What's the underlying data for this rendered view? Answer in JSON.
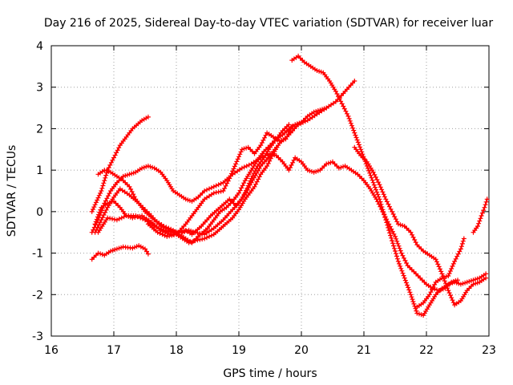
{
  "chart_data": {
    "type": "scatter",
    "title": "Day 216 of 2025, Sidereal Day-to-day VTEC variation (SDTVAR) for receiver luar",
    "xlabel": "GPS time / hours",
    "ylabel": "SDTVAR / TECUs",
    "xlim": [
      16,
      23
    ],
    "ylim": [
      -3,
      4
    ],
    "xticks": [
      "16",
      "17",
      "18",
      "19",
      "20",
      "21",
      "22",
      "23"
    ],
    "yticks": [
      "4",
      "3",
      "2",
      "1",
      "0",
      "-1",
      "-2",
      "-3"
    ],
    "grid": true,
    "marker": "+",
    "color": "#ff0000",
    "series": [
      {
        "name": "s1",
        "x": [
          16.65,
          16.8,
          16.9,
          17.0,
          17.1,
          17.2,
          17.3,
          17.45,
          17.55
        ],
        "y": [
          0.0,
          0.5,
          1.0,
          1.3,
          1.6,
          1.8,
          2.0,
          2.2,
          2.28
        ]
      },
      {
        "name": "s2",
        "x": [
          16.65,
          16.75,
          16.85,
          16.95,
          17.05,
          17.15,
          17.3,
          17.4,
          17.5,
          17.55
        ],
        "y": [
          -1.15,
          -1.0,
          -1.05,
          -0.95,
          -0.9,
          -0.85,
          -0.88,
          -0.82,
          -0.9,
          -1.02
        ]
      },
      {
        "name": "s3",
        "x": [
          16.65,
          16.75,
          16.85,
          16.95,
          17.05,
          17.15,
          17.25,
          17.35,
          17.45,
          17.55,
          17.65,
          17.75,
          17.85,
          17.95,
          18.05,
          18.15,
          18.25,
          18.35,
          18.45,
          18.6,
          18.75,
          18.9,
          19.05,
          19.2,
          19.35,
          19.5,
          19.6,
          19.7,
          19.8,
          19.9,
          20.0,
          20.1,
          20.2,
          20.3,
          20.4,
          20.5,
          20.6,
          20.7,
          20.8,
          20.9,
          21.0,
          21.1,
          21.2,
          21.3,
          21.4,
          21.5,
          21.6,
          21.7,
          21.8,
          21.9,
          22.0,
          22.1,
          22.2,
          22.3,
          22.4,
          22.5
        ],
        "y": [
          -0.5,
          -0.2,
          0.2,
          0.5,
          0.7,
          0.85,
          0.9,
          0.95,
          1.05,
          1.1,
          1.05,
          0.95,
          0.75,
          0.5,
          0.4,
          0.3,
          0.25,
          0.35,
          0.5,
          0.6,
          0.7,
          0.9,
          1.05,
          1.15,
          1.3,
          1.4,
          1.35,
          1.2,
          1.0,
          1.3,
          1.2,
          1.0,
          0.95,
          1.0,
          1.15,
          1.2,
          1.05,
          1.1,
          1.0,
          0.9,
          0.75,
          0.55,
          0.3,
          0.0,
          -0.3,
          -0.6,
          -1.0,
          -1.3,
          -1.45,
          -1.6,
          -1.75,
          -1.85,
          -1.9,
          -1.85,
          -1.7,
          -1.65
        ]
      },
      {
        "name": "s4",
        "x": [
          16.7,
          16.8,
          16.9,
          17.0,
          17.1,
          17.25,
          17.4,
          17.5,
          17.6,
          17.75,
          17.9,
          18.0,
          18.1,
          18.2,
          18.3,
          18.45,
          18.6,
          18.75,
          18.9,
          19.0,
          19.1,
          19.2,
          19.3,
          19.4,
          19.5,
          19.6,
          19.7,
          19.8
        ],
        "y": [
          -0.5,
          -0.2,
          0.1,
          0.35,
          0.55,
          0.4,
          0.2,
          0.05,
          -0.1,
          -0.35,
          -0.45,
          -0.5,
          -0.5,
          -0.45,
          -0.5,
          -0.55,
          -0.4,
          -0.2,
          0.05,
          0.2,
          0.45,
          0.8,
          1.1,
          1.3,
          1.55,
          1.75,
          1.95,
          2.1
        ]
      },
      {
        "name": "s5",
        "x": [
          16.7,
          16.8,
          16.9,
          17.0,
          17.1,
          17.2,
          17.3,
          17.45,
          17.6,
          17.75,
          17.9,
          18.0,
          18.1,
          18.2,
          18.3,
          18.45,
          18.6,
          18.75,
          18.9,
          19.0,
          19.1,
          19.25,
          19.35,
          19.45,
          19.55,
          19.65,
          19.8,
          19.95,
          20.1,
          20.25,
          20.4,
          20.55,
          20.7,
          20.85
        ],
        "y": [
          -0.3,
          0.1,
          0.2,
          0.25,
          0.1,
          -0.1,
          -0.15,
          -0.1,
          -0.25,
          -0.45,
          -0.55,
          -0.55,
          -0.65,
          -0.75,
          -0.7,
          -0.65,
          -0.55,
          -0.35,
          -0.15,
          0.05,
          0.3,
          0.6,
          0.9,
          1.1,
          1.4,
          1.65,
          1.85,
          2.1,
          2.2,
          2.35,
          2.5,
          2.65,
          2.9,
          3.15
        ]
      },
      {
        "name": "s6",
        "x": [
          16.75,
          16.85,
          16.95,
          17.05,
          17.15,
          17.25,
          17.35,
          17.5,
          17.65,
          17.8,
          17.95,
          18.05,
          18.15,
          18.25,
          18.35,
          18.5,
          18.6,
          18.7,
          18.8,
          18.9,
          19.0,
          19.1,
          19.2,
          19.3,
          19.4,
          19.5,
          19.6,
          19.7,
          19.8,
          19.9,
          20.0,
          20.1,
          20.2,
          20.3,
          20.4
        ],
        "y": [
          0.9,
          1.0,
          0.95,
          0.85,
          0.75,
          0.6,
          0.3,
          0.0,
          -0.2,
          -0.35,
          -0.45,
          -0.55,
          -0.65,
          -0.75,
          -0.6,
          -0.4,
          -0.2,
          0.0,
          0.1,
          0.25,
          0.45,
          0.75,
          1.0,
          1.25,
          1.45,
          1.6,
          1.75,
          1.85,
          2.0,
          2.1,
          2.15,
          2.3,
          2.4,
          2.45,
          2.5
        ]
      },
      {
        "name": "s7",
        "x": [
          16.75,
          16.9,
          17.05,
          17.2,
          17.35,
          17.5,
          17.65,
          17.8,
          17.95,
          18.05,
          18.15,
          18.25,
          18.4,
          18.55,
          18.7,
          18.85,
          18.95,
          19.05,
          19.2,
          19.35,
          19.5,
          19.6
        ],
        "y": [
          -0.5,
          -0.15,
          -0.2,
          -0.1,
          -0.1,
          -0.2,
          -0.35,
          -0.45,
          -0.5,
          -0.5,
          -0.45,
          -0.55,
          -0.35,
          -0.1,
          0.1,
          0.3,
          0.15,
          0.3,
          0.7,
          1.1,
          1.35,
          1.55
        ]
      },
      {
        "name": "s8",
        "x": [
          17.55,
          17.7,
          17.85,
          18.0,
          18.15,
          18.3,
          18.45,
          18.6,
          18.75,
          18.85,
          18.95,
          19.05,
          19.15,
          19.25,
          19.35,
          19.45,
          19.55,
          19.65,
          19.75,
          19.85
        ],
        "y": [
          -0.3,
          -0.5,
          -0.6,
          -0.55,
          -0.3,
          0.0,
          0.3,
          0.45,
          0.5,
          0.8,
          1.15,
          1.5,
          1.55,
          1.4,
          1.6,
          1.9,
          1.8,
          1.7,
          1.75,
          2.05
        ]
      },
      {
        "name": "s9",
        "x": [
          19.85,
          19.95,
          20.05,
          20.15,
          20.25,
          20.35,
          20.45,
          20.55,
          20.65,
          20.75,
          20.85,
          20.95,
          21.05,
          21.15,
          21.25,
          21.35,
          21.45,
          21.55,
          21.65,
          21.75,
          21.85,
          21.95,
          22.05,
          22.15,
          22.25,
          22.35,
          22.45,
          22.55,
          22.65,
          22.75,
          22.85,
          22.95
        ],
        "y": [
          3.65,
          3.75,
          3.6,
          3.5,
          3.4,
          3.35,
          3.15,
          2.9,
          2.6,
          2.3,
          1.9,
          1.5,
          1.1,
          0.7,
          0.3,
          -0.2,
          -0.7,
          -1.2,
          -1.6,
          -2.0,
          -2.45,
          -2.5,
          -2.25,
          -2.0,
          -1.85,
          -1.75,
          -1.7,
          -1.75,
          -1.7,
          -1.65,
          -1.6,
          -1.5
        ]
      },
      {
        "name": "s10",
        "x": [
          20.85,
          20.95,
          21.05,
          21.15,
          21.25,
          21.35,
          21.45,
          21.55,
          21.65,
          21.75,
          21.85,
          21.95,
          22.05,
          22.15,
          22.25,
          22.35,
          22.45,
          22.55,
          22.65,
          22.75,
          22.85,
          22.95
        ],
        "y": [
          1.55,
          1.35,
          1.2,
          0.95,
          0.65,
          0.3,
          0.0,
          -0.3,
          -0.35,
          -0.5,
          -0.8,
          -0.95,
          -1.05,
          -1.15,
          -1.5,
          -1.9,
          -2.25,
          -2.15,
          -1.9,
          -1.75,
          -1.7,
          -1.6
        ]
      },
      {
        "name": "s11",
        "x": [
          21.85,
          21.95,
          22.05,
          22.15,
          22.25,
          22.35,
          22.45,
          22.55,
          22.6
        ],
        "y": [
          -2.3,
          -2.2,
          -2.0,
          -1.7,
          -1.6,
          -1.55,
          -1.2,
          -0.9,
          -0.65
        ]
      },
      {
        "name": "s12",
        "x": [
          22.75,
          22.82,
          22.88,
          22.93,
          22.97
        ],
        "y": [
          -0.5,
          -0.35,
          -0.1,
          0.1,
          0.3
        ]
      }
    ]
  }
}
